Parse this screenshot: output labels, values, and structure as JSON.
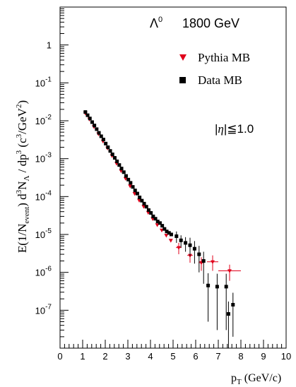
{
  "chart_data": {
    "type": "scatter",
    "title": "",
    "annotations": {
      "particle": "Λ",
      "particle_superscript": "0",
      "energy": "1800 GeV",
      "cut_prefix": "|",
      "cut_symbol": "η",
      "cut_suffix": "|≦1.0"
    },
    "xlabel": {
      "main": "p",
      "sub": "T",
      "rest": " (GeV/c)"
    },
    "ylabel": {
      "part1": "E(1/N",
      "sub1": "event",
      "part2": ") d",
      "sup2": "3",
      "part3": "N",
      "sub3": "Λ",
      "part4": " / dp",
      "sup4": "3",
      "part5": "  (c",
      "sup5": "3",
      "part6": "/GeV",
      "sup6": "2",
      "part7": ")"
    },
    "xlim": [
      0,
      10
    ],
    "ylim": [
      1e-08,
      10
    ],
    "yscale": "log",
    "x_ticks": [
      "0",
      "1",
      "2",
      "3",
      "4",
      "5",
      "6",
      "7",
      "8",
      "9",
      "10"
    ],
    "y_ticks": [
      {
        "base": "1",
        "exp": ""
      },
      {
        "base": "10",
        "exp": "-1"
      },
      {
        "base": "10",
        "exp": "-2"
      },
      {
        "base": "10",
        "exp": "-3"
      },
      {
        "base": "10",
        "exp": "-4"
      },
      {
        "base": "10",
        "exp": "-5"
      },
      {
        "base": "10",
        "exp": "-6"
      },
      {
        "base": "10",
        "exp": "-7"
      }
    ],
    "legend_position": "top-right",
    "series": [
      {
        "name": "Pythia MB",
        "marker": "triangle-down",
        "color": "#e0001b",
        "points": [
          {
            "x": 1.12,
            "y": 0.016,
            "xerr": 0.04,
            "yerr_lo": 0,
            "yerr_hi": 0
          },
          {
            "x": 1.3,
            "y": 0.011,
            "xerr": 0.05,
            "yerr_lo": 0,
            "yerr_hi": 0
          },
          {
            "x": 1.5,
            "y": 0.007,
            "xerr": 0.05,
            "yerr_lo": 0,
            "yerr_hi": 0
          },
          {
            "x": 1.7,
            "y": 0.0045,
            "xerr": 0.05,
            "yerr_lo": 0,
            "yerr_hi": 0
          },
          {
            "x": 1.9,
            "y": 0.0029,
            "xerr": 0.05,
            "yerr_lo": 0,
            "yerr_hi": 0
          },
          {
            "x": 2.1,
            "y": 0.0019,
            "xerr": 0.05,
            "yerr_lo": 0,
            "yerr_hi": 0
          },
          {
            "x": 2.3,
            "y": 0.0012,
            "xerr": 0.05,
            "yerr_lo": 0,
            "yerr_hi": 0
          },
          {
            "x": 2.5,
            "y": 0.00075,
            "xerr": 0.05,
            "yerr_lo": 0,
            "yerr_hi": 0
          },
          {
            "x": 2.7,
            "y": 0.00048,
            "xerr": 0.05,
            "yerr_lo": 0,
            "yerr_hi": 0
          },
          {
            "x": 2.9,
            "y": 0.0003,
            "xerr": 0.05,
            "yerr_lo": 0,
            "yerr_hi": 0
          },
          {
            "x": 3.1,
            "y": 0.00019,
            "xerr": 0.05,
            "yerr_lo": 0,
            "yerr_hi": 0
          },
          {
            "x": 3.3,
            "y": 0.00012,
            "xerr": 0.05,
            "yerr_lo": 0,
            "yerr_hi": 0
          },
          {
            "x": 3.5,
            "y": 8e-05,
            "xerr": 0.05,
            "yerr_lo": 0,
            "yerr_hi": 0
          },
          {
            "x": 3.7,
            "y": 5.5e-05,
            "xerr": 0.05,
            "yerr_lo": 0,
            "yerr_hi": 0
          },
          {
            "x": 3.9,
            "y": 3.8e-05,
            "xerr": 0.05,
            "yerr_lo": 0,
            "yerr_hi": 0
          },
          {
            "x": 4.1,
            "y": 2.6e-05,
            "xerr": 0.05,
            "yerr_lo": 0,
            "yerr_hi": 0
          },
          {
            "x": 4.3,
            "y": 1.8e-05,
            "xerr": 0.05,
            "yerr_lo": 0,
            "yerr_hi": 0
          },
          {
            "x": 4.5,
            "y": 1.3e-05,
            "xerr": 0.05,
            "yerr_lo": 0,
            "yerr_hi": 0
          },
          {
            "x": 4.7,
            "y": 9.5e-06,
            "xerr": 0.05,
            "yerr_lo": 0,
            "yerr_hi": 0
          },
          {
            "x": 4.9,
            "y": 7e-06,
            "xerr": 0.05,
            "yerr_lo": 0,
            "yerr_hi": 0
          },
          {
            "x": 5.25,
            "y": 4.5e-06,
            "xerr": 0.12,
            "yerr_lo": 1.5e-06,
            "yerr_hi": 1.5e-06
          },
          {
            "x": 5.75,
            "y": 2.8e-06,
            "xerr": 0.12,
            "yerr_lo": 1e-06,
            "yerr_hi": 1e-06
          },
          {
            "x": 6.25,
            "y": 1.8e-06,
            "xerr": 0.12,
            "yerr_lo": 7e-07,
            "yerr_hi": 7e-07
          },
          {
            "x": 6.75,
            "y": 1.9e-06,
            "xerr": 0.25,
            "yerr_lo": 8e-07,
            "yerr_hi": 9e-07
          },
          {
            "x": 7.5,
            "y": 1.1e-06,
            "xerr": 0.5,
            "yerr_lo": 5e-07,
            "yerr_hi": 5e-07
          }
        ]
      },
      {
        "name": "Data MB",
        "marker": "square",
        "color": "#000000",
        "points": [
          {
            "x": 1.12,
            "y": 0.017,
            "yerr_lo": 0,
            "yerr_hi": 0
          },
          {
            "x": 1.22,
            "y": 0.014,
            "yerr_lo": 0,
            "yerr_hi": 0
          },
          {
            "x": 1.32,
            "y": 0.0115,
            "yerr_lo": 0,
            "yerr_hi": 0
          },
          {
            "x": 1.42,
            "y": 0.0092,
            "yerr_lo": 0,
            "yerr_hi": 0
          },
          {
            "x": 1.52,
            "y": 0.0075,
            "yerr_lo": 0,
            "yerr_hi": 0
          },
          {
            "x": 1.62,
            "y": 0.006,
            "yerr_lo": 0,
            "yerr_hi": 0
          },
          {
            "x": 1.72,
            "y": 0.0048,
            "yerr_lo": 0,
            "yerr_hi": 0
          },
          {
            "x": 1.82,
            "y": 0.0039,
            "yerr_lo": 0,
            "yerr_hi": 0
          },
          {
            "x": 1.92,
            "y": 0.0032,
            "yerr_lo": 0,
            "yerr_hi": 0
          },
          {
            "x": 2.02,
            "y": 0.0025,
            "yerr_lo": 0,
            "yerr_hi": 0
          },
          {
            "x": 2.12,
            "y": 0.002,
            "yerr_lo": 0,
            "yerr_hi": 0
          },
          {
            "x": 2.22,
            "y": 0.0016,
            "yerr_lo": 0,
            "yerr_hi": 0
          },
          {
            "x": 2.32,
            "y": 0.0013,
            "yerr_lo": 0,
            "yerr_hi": 0
          },
          {
            "x": 2.42,
            "y": 0.00105,
            "yerr_lo": 0,
            "yerr_hi": 0
          },
          {
            "x": 2.52,
            "y": 0.00085,
            "yerr_lo": 0,
            "yerr_hi": 0
          },
          {
            "x": 2.62,
            "y": 0.00068,
            "yerr_lo": 0,
            "yerr_hi": 0
          },
          {
            "x": 2.72,
            "y": 0.00055,
            "yerr_lo": 0,
            "yerr_hi": 0
          },
          {
            "x": 2.82,
            "y": 0.00044,
            "yerr_lo": 0,
            "yerr_hi": 0
          },
          {
            "x": 2.92,
            "y": 0.00035,
            "yerr_lo": 0,
            "yerr_hi": 0
          },
          {
            "x": 3.02,
            "y": 0.00028,
            "yerr_lo": 0,
            "yerr_hi": 0
          },
          {
            "x": 3.12,
            "y": 0.00023,
            "yerr_lo": 0,
            "yerr_hi": 0
          },
          {
            "x": 3.22,
            "y": 0.00018,
            "yerr_lo": 0,
            "yerr_hi": 0
          },
          {
            "x": 3.32,
            "y": 0.000145,
            "yerr_lo": 0,
            "yerr_hi": 0
          },
          {
            "x": 3.42,
            "y": 0.00012,
            "yerr_lo": 0,
            "yerr_hi": 0
          },
          {
            "x": 3.52,
            "y": 9.5e-05,
            "yerr_lo": 0,
            "yerr_hi": 0
          },
          {
            "x": 3.62,
            "y": 7.8e-05,
            "yerr_lo": 0,
            "yerr_hi": 0
          },
          {
            "x": 3.72,
            "y": 6.5e-05,
            "yerr_lo": 0,
            "yerr_hi": 0
          },
          {
            "x": 3.82,
            "y": 5.4e-05,
            "yerr_lo": 0,
            "yerr_hi": 0
          },
          {
            "x": 3.92,
            "y": 4.4e-05,
            "yerr_lo": 0,
            "yerr_hi": 0
          },
          {
            "x": 4.02,
            "y": 3.7e-05,
            "yerr_lo": 0,
            "yerr_hi": 0
          },
          {
            "x": 4.12,
            "y": 3e-05,
            "yerr_lo": 0,
            "yerr_hi": 0
          },
          {
            "x": 4.22,
            "y": 2.6e-05,
            "yerr_lo": 0,
            "yerr_hi": 0
          },
          {
            "x": 4.32,
            "y": 2.2e-05,
            "yerr_lo": 0,
            "yerr_hi": 0
          },
          {
            "x": 4.42,
            "y": 2e-05,
            "yerr_lo": 0,
            "yerr_hi": 0
          },
          {
            "x": 4.52,
            "y": 1.7e-05,
            "yerr_lo": 0,
            "yerr_hi": 0
          },
          {
            "x": 4.62,
            "y": 1.4e-05,
            "yerr_lo": 0,
            "yerr_hi": 0
          },
          {
            "x": 4.72,
            "y": 1.2e-05,
            "yerr_lo": 0,
            "yerr_hi": 0
          },
          {
            "x": 4.82,
            "y": 1.1e-05,
            "yerr_lo": 0,
            "yerr_hi": 0
          },
          {
            "x": 4.92,
            "y": 1e-05,
            "yerr_lo": 0,
            "yerr_hi": 0
          },
          {
            "x": 5.15,
            "y": 9e-06,
            "yerr_lo": 3e-06,
            "yerr_hi": 3e-06
          },
          {
            "x": 5.35,
            "y": 7e-06,
            "yerr_lo": 2.5e-06,
            "yerr_hi": 2.5e-06
          },
          {
            "x": 5.55,
            "y": 6e-06,
            "yerr_lo": 2.5e-06,
            "yerr_hi": 2.5e-06
          },
          {
            "x": 5.75,
            "y": 5.2e-06,
            "yerr_lo": 2.5e-06,
            "yerr_hi": 3e-06
          },
          {
            "x": 5.95,
            "y": 4.2e-06,
            "yerr_lo": 2.5e-06,
            "yerr_hi": 2.5e-06
          },
          {
            "x": 6.15,
            "y": 3e-06,
            "yerr_lo": 2e-06,
            "yerr_hi": 2e-06
          },
          {
            "x": 6.35,
            "y": 2e-06,
            "yerr_lo": 1.5e-06,
            "yerr_hi": 1.5e-06
          },
          {
            "x": 6.55,
            "y": 4.5e-07,
            "yerr_lo": 4e-07,
            "yerr_hi": 5e-07
          },
          {
            "x": 6.95,
            "y": 4.2e-07,
            "yerr_lo": 3.9e-07,
            "yerr_hi": 5e-07
          },
          {
            "x": 7.35,
            "y": 4.2e-07,
            "yerr_lo": 3.9e-07,
            "yerr_hi": 5e-07
          },
          {
            "x": 7.45,
            "y": 8e-08,
            "yerr_lo": 7e-08,
            "yerr_hi": 9e-08
          },
          {
            "x": 7.65,
            "y": 1.4e-07,
            "yerr_lo": 1.2e-07,
            "yerr_hi": 1.5e-07
          }
        ]
      }
    ]
  }
}
